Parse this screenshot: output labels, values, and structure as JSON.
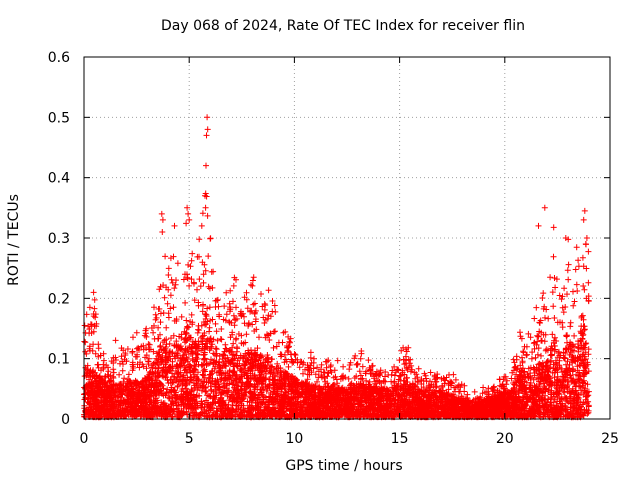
{
  "chart_data": {
    "type": "scatter",
    "title": "Day 068 of 2024, Rate Of TEC Index for receiver flin",
    "xlabel": "GPS time / hours",
    "ylabel": "ROTI / TECUs",
    "xlim": [
      0,
      25
    ],
    "ylim": [
      0,
      0.6
    ],
    "xticks": [
      "0",
      "5",
      "10",
      "15",
      "20",
      "25"
    ],
    "yticks": [
      "0",
      "0.1",
      "0.2",
      "0.3",
      "0.4",
      "0.5",
      "0.6"
    ],
    "grid": true,
    "marker": "+",
    "color": "#ff0000",
    "series": [
      {
        "name": "ROTI",
        "envelope": {
          "x": [
            0,
            0.1,
            0.3,
            0.5,
            0.8,
            1.2,
            1.6,
            2.0,
            2.5,
            3.0,
            3.3,
            3.6,
            3.8,
            4.0,
            4.3,
            4.6,
            4.9,
            5.1,
            5.4,
            5.7,
            5.85,
            6.0,
            6.3,
            6.7,
            7.0,
            7.5,
            8.0,
            8.3,
            8.7,
            9.0,
            9.5,
            10.0,
            10.5,
            11.0,
            11.5,
            12.0,
            12.5,
            13.0,
            13.5,
            14.0,
            14.5,
            15.0,
            15.4,
            15.8,
            16.3,
            16.8,
            17.3,
            17.8,
            18.3,
            18.8,
            19.3,
            19.8,
            20.3,
            20.8,
            21.2,
            21.6,
            22.0,
            22.3,
            22.7,
            23.0,
            23.3,
            23.6,
            23.8,
            24.0
          ],
          "peak": [
            0.16,
            0.22,
            0.19,
            0.23,
            0.14,
            0.1,
            0.14,
            0.11,
            0.16,
            0.15,
            0.19,
            0.24,
            0.34,
            0.28,
            0.31,
            0.24,
            0.35,
            0.3,
            0.28,
            0.36,
            0.5,
            0.32,
            0.26,
            0.21,
            0.25,
            0.22,
            0.24,
            0.22,
            0.25,
            0.2,
            0.16,
            0.13,
            0.12,
            0.11,
            0.1,
            0.1,
            0.09,
            0.12,
            0.11,
            0.1,
            0.09,
            0.13,
            0.12,
            0.1,
            0.08,
            0.09,
            0.08,
            0.07,
            0.05,
            0.05,
            0.06,
            0.07,
            0.08,
            0.16,
            0.17,
            0.2,
            0.23,
            0.35,
            0.25,
            0.3,
            0.26,
            0.33,
            0.35,
            0.28
          ],
          "typical": [
            0.06,
            0.07,
            0.06,
            0.06,
            0.05,
            0.04,
            0.045,
            0.04,
            0.05,
            0.05,
            0.07,
            0.09,
            0.11,
            0.09,
            0.1,
            0.09,
            0.12,
            0.1,
            0.1,
            0.12,
            0.14,
            0.11,
            0.09,
            0.08,
            0.09,
            0.08,
            0.09,
            0.08,
            0.08,
            0.07,
            0.06,
            0.05,
            0.045,
            0.04,
            0.04,
            0.04,
            0.035,
            0.045,
            0.04,
            0.04,
            0.035,
            0.05,
            0.045,
            0.04,
            0.03,
            0.035,
            0.03,
            0.025,
            0.02,
            0.02,
            0.025,
            0.03,
            0.035,
            0.06,
            0.06,
            0.07,
            0.07,
            0.1,
            0.08,
            0.1,
            0.09,
            0.11,
            0.12,
            0.1
          ]
        },
        "highlights": [
          {
            "x": 5.85,
            "y": 0.5
          },
          {
            "x": 5.88,
            "y": 0.48
          },
          {
            "x": 5.82,
            "y": 0.47
          },
          {
            "x": 5.8,
            "y": 0.42
          },
          {
            "x": 5.75,
            "y": 0.37
          },
          {
            "x": 5.78,
            "y": 0.35
          },
          {
            "x": 3.7,
            "y": 0.34
          },
          {
            "x": 3.75,
            "y": 0.33
          },
          {
            "x": 3.72,
            "y": 0.31
          },
          {
            "x": 4.9,
            "y": 0.35
          },
          {
            "x": 4.95,
            "y": 0.34
          },
          {
            "x": 5.0,
            "y": 0.33
          },
          {
            "x": 21.9,
            "y": 0.35
          },
          {
            "x": 23.8,
            "y": 0.345
          },
          {
            "x": 23.75,
            "y": 0.33
          },
          {
            "x": 21.6,
            "y": 0.32
          },
          {
            "x": 4.3,
            "y": 0.32
          },
          {
            "x": 5.6,
            "y": 0.32
          },
          {
            "x": 23.9,
            "y": 0.3
          },
          {
            "x": 23.85,
            "y": 0.29
          },
          {
            "x": 22.9,
            "y": 0.3
          }
        ]
      }
    ]
  }
}
